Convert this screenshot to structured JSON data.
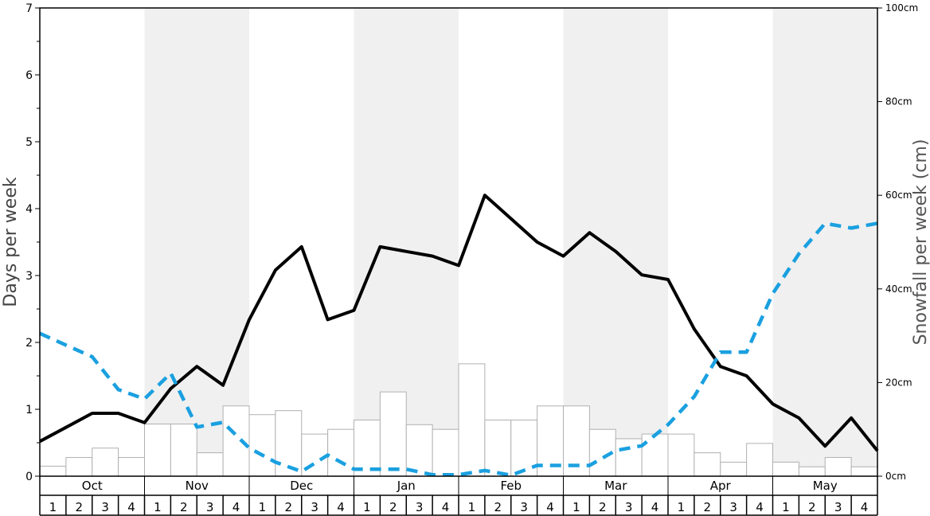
{
  "chart_data": {
    "type": "bar+line",
    "left_axis": {
      "label": "Days per week",
      "min": 0,
      "max": 7,
      "ticks": [
        0,
        1,
        2,
        3,
        4,
        5,
        6,
        7
      ]
    },
    "right_axis": {
      "label": "Snowfall per week (cm)",
      "min": 0,
      "max": 100,
      "ticks": [
        "0cm",
        "20cm",
        "40cm",
        "60cm",
        "80cm",
        "100cm"
      ]
    },
    "months": [
      "Oct",
      "Nov",
      "Dec",
      "Jan",
      "Feb",
      "Mar",
      "Apr",
      "May"
    ],
    "week_labels": [
      "1",
      "2",
      "3",
      "4"
    ],
    "shaded_months": [
      "Nov",
      "Jan",
      "Mar",
      "May"
    ],
    "series": [
      {
        "kind": "bars",
        "axis": "left",
        "values": [
          0.15,
          0.28,
          0.42,
          0.28,
          0.78,
          0.78,
          0.35,
          1.05,
          0.92,
          0.98,
          0.63,
          0.7,
          0.84,
          1.26,
          0.77,
          0.7,
          1.68,
          0.84,
          0.84,
          1.05,
          1.05,
          0.7,
          0.56,
          0.63,
          0.63,
          0.35,
          0.21,
          0.49,
          0.21,
          0.14,
          0.28,
          0.14
        ],
        "color": "#ffffff",
        "stroke": "#b0b0b0"
      },
      {
        "kind": "line",
        "axis": "left",
        "style": "solid",
        "color": "#000000",
        "values": [
          0.52,
          0.73,
          0.94,
          0.94,
          0.8,
          1.31,
          1.64,
          1.36,
          2.34,
          3.08,
          3.43,
          2.34,
          2.48,
          3.43,
          3.36,
          3.29,
          3.15,
          4.2,
          3.85,
          3.5,
          3.29,
          3.64,
          3.36,
          3.01,
          2.94,
          2.2,
          1.64,
          1.5,
          1.08,
          0.87,
          0.45,
          0.87,
          0.38
        ]
      },
      {
        "kind": "line",
        "axis": "right",
        "style": "dashed",
        "color": "#1aa0e0",
        "values": [
          30.5,
          28,
          25.5,
          18.5,
          16.5,
          22,
          10.5,
          11.5,
          6,
          3,
          1,
          4.5,
          1.5,
          1.5,
          1.5,
          0.3,
          0.3,
          1.2,
          0.2,
          2.3,
          2.3,
          2.3,
          5.5,
          6.5,
          11,
          17,
          26.5,
          26.5,
          39,
          47.5,
          54,
          53,
          54
        ]
      }
    ]
  }
}
